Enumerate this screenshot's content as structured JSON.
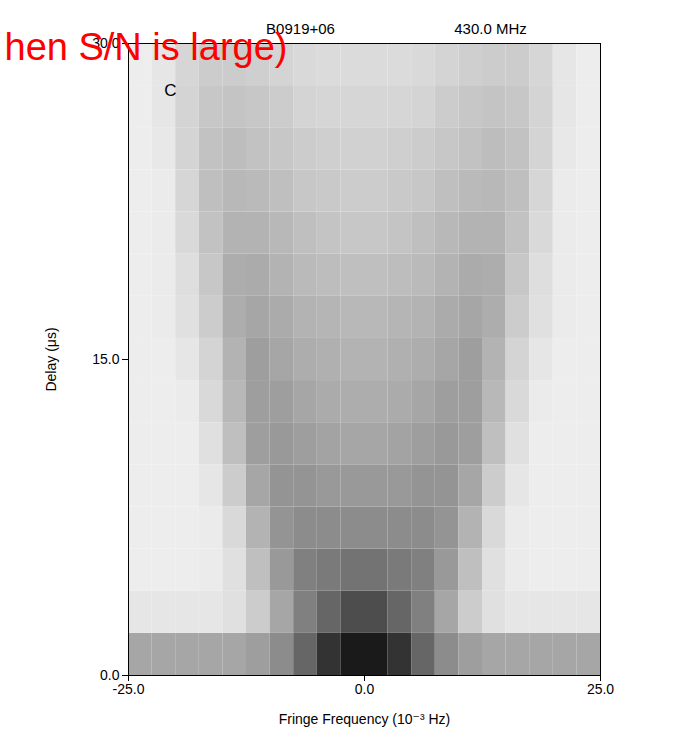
{
  "chart_data": {
    "type": "heatmap",
    "title": "B0919+06",
    "subtitle": "430.0 MHz",
    "x_label": "Fringe Frequency (10⁻³ Hz)",
    "y_label": "Delay (μs)",
    "annotations": [
      {
        "text": "C",
        "color": "#000000"
      },
      {
        "text": "hen S/N is large)",
        "color": "#ff0000"
      }
    ],
    "xlim": [
      -25,
      25
    ],
    "ylim": [
      0,
      30
    ],
    "xticks": [
      {
        "value": -25,
        "label": "-25.0"
      },
      {
        "value": 0,
        "label": "0.0"
      },
      {
        "value": 25,
        "label": "25.0"
      }
    ],
    "yticks": [
      {
        "value": 0,
        "label": "0.0"
      },
      {
        "value": 15,
        "label": "15.0"
      },
      {
        "value": 30,
        "label": "30.0"
      }
    ],
    "zlim": [
      0,
      1
    ],
    "cells": {
      "x": [
        -23.75,
        -21.25,
        -18.75,
        -16.25,
        -13.75,
        -11.25,
        -8.75,
        -6.25,
        -3.75,
        -1.25,
        1.25,
        3.75,
        6.25,
        8.75,
        11.25,
        13.75,
        16.25,
        18.75,
        21.25,
        23.75
      ],
      "y": [
        1,
        3,
        5,
        7,
        9,
        11,
        13,
        15,
        17,
        19,
        21,
        23,
        25,
        27,
        29
      ],
      "values": [
        [
          0.35,
          0.35,
          0.35,
          0.35,
          0.35,
          0.38,
          0.45,
          0.6,
          0.8,
          0.9,
          0.9,
          0.8,
          0.6,
          0.45,
          0.38,
          0.35,
          0.35,
          0.35,
          0.35,
          0.35
        ],
        [
          0.1,
          0.1,
          0.1,
          0.1,
          0.12,
          0.2,
          0.35,
          0.5,
          0.6,
          0.7,
          0.7,
          0.6,
          0.5,
          0.35,
          0.2,
          0.12,
          0.1,
          0.1,
          0.1,
          0.1
        ],
        [
          0.07,
          0.07,
          0.07,
          0.08,
          0.12,
          0.25,
          0.4,
          0.5,
          0.52,
          0.55,
          0.55,
          0.52,
          0.5,
          0.4,
          0.25,
          0.12,
          0.08,
          0.07,
          0.07,
          0.07
        ],
        [
          0.07,
          0.07,
          0.07,
          0.08,
          0.15,
          0.3,
          0.42,
          0.45,
          0.45,
          0.45,
          0.45,
          0.45,
          0.45,
          0.42,
          0.3,
          0.15,
          0.08,
          0.07,
          0.07,
          0.07
        ],
        [
          0.07,
          0.07,
          0.07,
          0.1,
          0.2,
          0.35,
          0.42,
          0.42,
          0.4,
          0.4,
          0.4,
          0.4,
          0.42,
          0.42,
          0.35,
          0.2,
          0.1,
          0.07,
          0.07,
          0.07
        ],
        [
          0.07,
          0.07,
          0.07,
          0.12,
          0.25,
          0.38,
          0.4,
          0.38,
          0.36,
          0.35,
          0.35,
          0.36,
          0.38,
          0.4,
          0.38,
          0.25,
          0.12,
          0.07,
          0.07,
          0.07
        ],
        [
          0.07,
          0.07,
          0.08,
          0.15,
          0.28,
          0.38,
          0.38,
          0.35,
          0.33,
          0.32,
          0.32,
          0.33,
          0.35,
          0.38,
          0.38,
          0.28,
          0.15,
          0.08,
          0.07,
          0.07
        ],
        [
          0.07,
          0.07,
          0.1,
          0.17,
          0.3,
          0.38,
          0.35,
          0.32,
          0.31,
          0.3,
          0.3,
          0.31,
          0.32,
          0.35,
          0.38,
          0.3,
          0.17,
          0.1,
          0.07,
          0.07
        ],
        [
          0.07,
          0.08,
          0.12,
          0.2,
          0.32,
          0.35,
          0.33,
          0.3,
          0.29,
          0.28,
          0.28,
          0.29,
          0.3,
          0.33,
          0.35,
          0.32,
          0.2,
          0.12,
          0.08,
          0.07
        ],
        [
          0.07,
          0.08,
          0.13,
          0.22,
          0.32,
          0.33,
          0.3,
          0.27,
          0.26,
          0.25,
          0.25,
          0.26,
          0.27,
          0.3,
          0.33,
          0.32,
          0.22,
          0.13,
          0.08,
          0.07
        ],
        [
          0.07,
          0.08,
          0.15,
          0.24,
          0.3,
          0.3,
          0.28,
          0.25,
          0.23,
          0.22,
          0.22,
          0.23,
          0.25,
          0.28,
          0.3,
          0.3,
          0.24,
          0.15,
          0.08,
          0.07
        ],
        [
          0.07,
          0.08,
          0.16,
          0.25,
          0.28,
          0.27,
          0.25,
          0.22,
          0.21,
          0.2,
          0.2,
          0.21,
          0.22,
          0.25,
          0.27,
          0.28,
          0.25,
          0.16,
          0.08,
          0.07
        ],
        [
          0.07,
          0.09,
          0.17,
          0.24,
          0.26,
          0.24,
          0.22,
          0.2,
          0.19,
          0.18,
          0.18,
          0.19,
          0.2,
          0.22,
          0.24,
          0.26,
          0.24,
          0.17,
          0.09,
          0.07
        ],
        [
          0.07,
          0.1,
          0.17,
          0.22,
          0.23,
          0.22,
          0.2,
          0.17,
          0.16,
          0.16,
          0.16,
          0.16,
          0.17,
          0.2,
          0.22,
          0.23,
          0.22,
          0.17,
          0.1,
          0.07
        ],
        [
          0.07,
          0.1,
          0.16,
          0.2,
          0.2,
          0.19,
          0.17,
          0.15,
          0.14,
          0.14,
          0.14,
          0.14,
          0.15,
          0.17,
          0.19,
          0.2,
          0.2,
          0.16,
          0.1,
          0.07
        ]
      ]
    }
  }
}
